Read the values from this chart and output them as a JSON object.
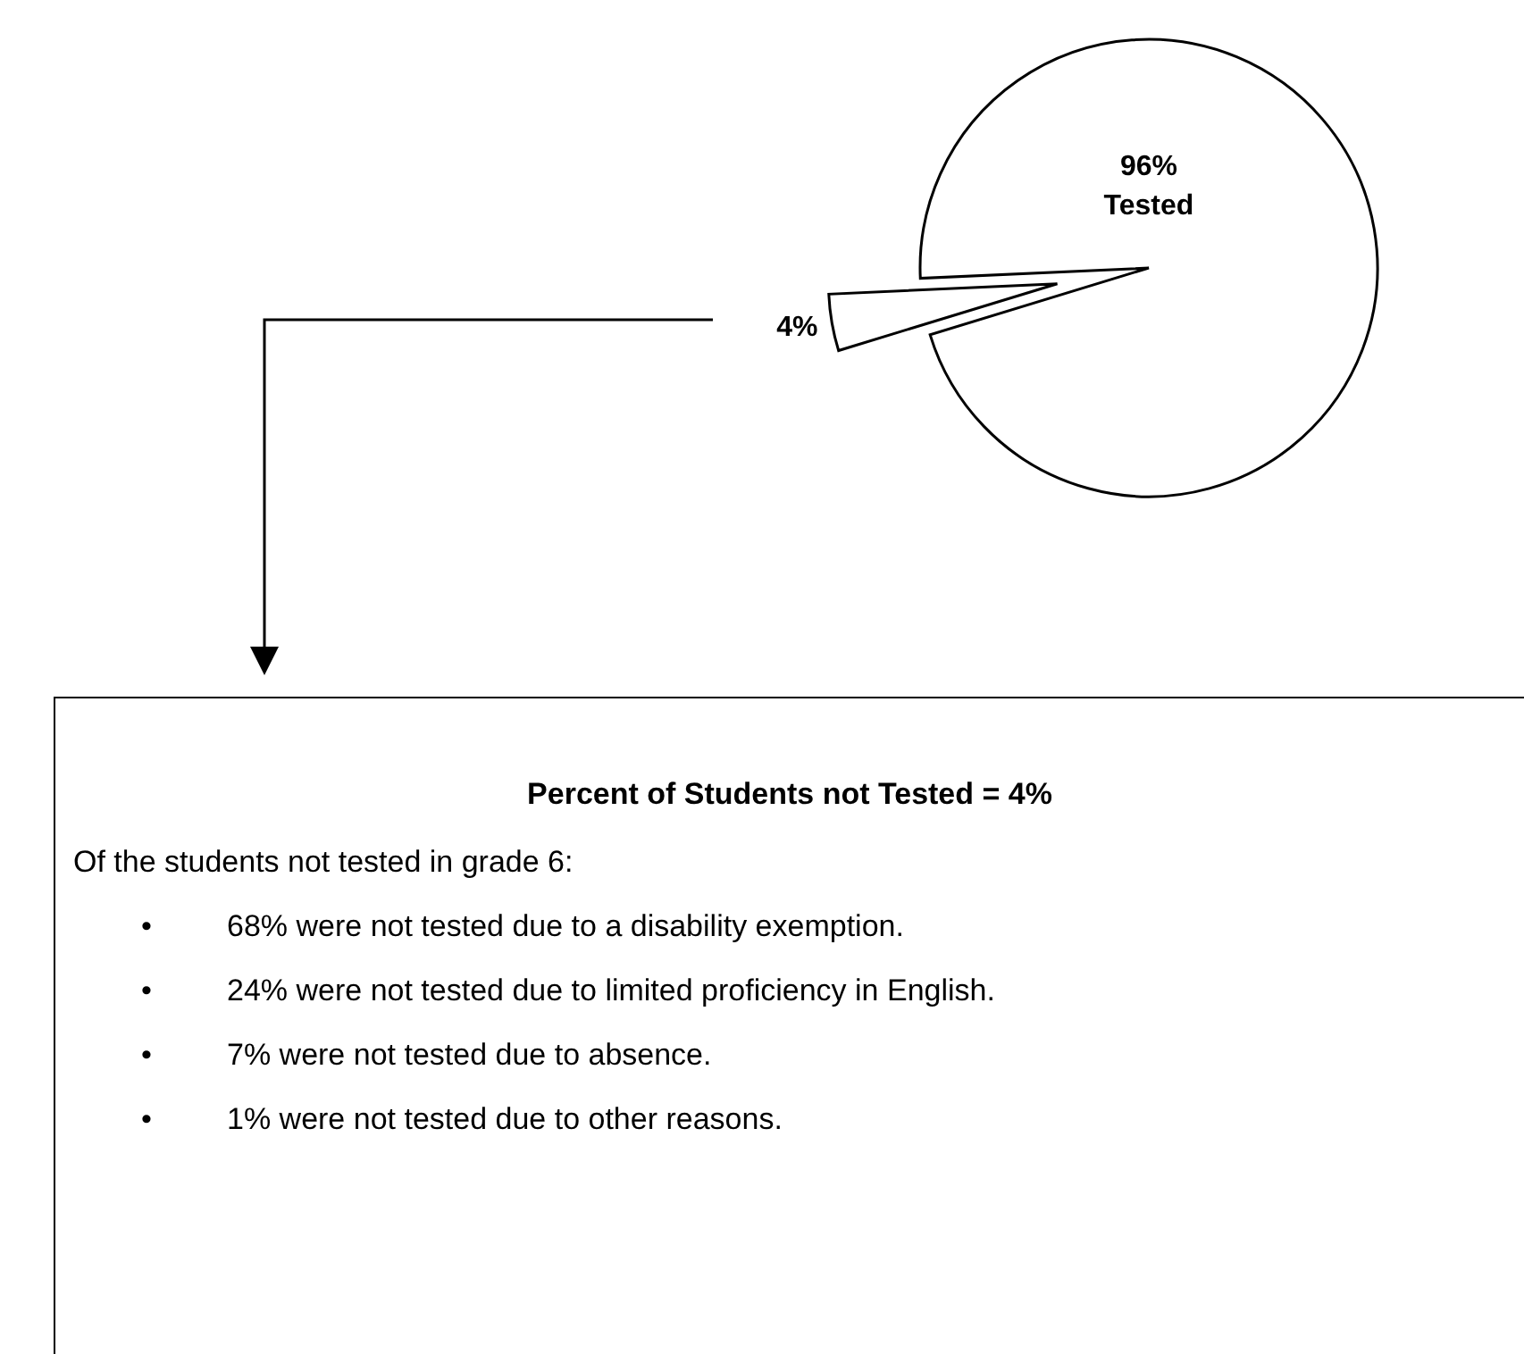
{
  "chart_data": {
    "type": "pie",
    "categories": [
      "Tested",
      null
    ],
    "values": [
      96,
      4
    ],
    "value_labels": [
      "96%",
      "4%"
    ],
    "colors": [
      "#ffffff",
      "#ffffff"
    ],
    "annotations": [
      "Percent of Students not Tested = 4%",
      "Of the students not tested in grade 6:",
      "• 68% were not tested due to a disability exemption.",
      "• 24% were not tested due to limited proficiency in English.",
      "• 7% were not tested due to absence.",
      "• 1% were not tested due to other reasons."
    ]
  }
}
